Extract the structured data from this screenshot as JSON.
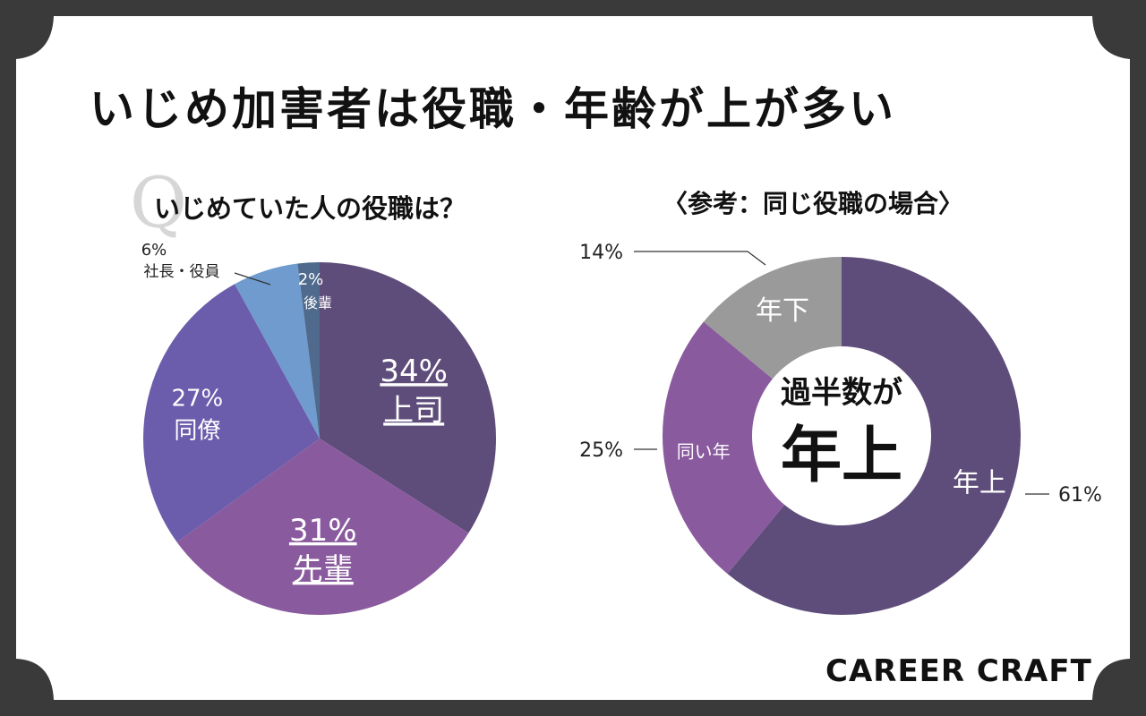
{
  "title": "いじめ加害者は役職・年齢が上が多い",
  "q_mark": "Q",
  "brand": "CAREER CRAFT",
  "chart_data": [
    {
      "type": "pie",
      "title": "いじめていた人の役職は？",
      "slices": [
        {
          "label": "上司",
          "value": 34,
          "value_text": "34%",
          "color": "#5e4d7a"
        },
        {
          "label": "先輩",
          "value": 31,
          "value_text": "31%",
          "color": "#8a5a9e"
        },
        {
          "label": "同僚",
          "value": 27,
          "value_text": "27%",
          "color": "#6b5dab"
        },
        {
          "label": "社長・役員",
          "value": 6,
          "value_text": "6%",
          "color": "#6f9bcf"
        },
        {
          "label": "後輩",
          "value": 2,
          "value_text": "2%",
          "color": "#4f6a8c"
        }
      ]
    },
    {
      "type": "pie",
      "subtype": "donut",
      "title": "〈参考：同じ役職の場合〉",
      "center_text": [
        "過半数が",
        "年上"
      ],
      "slices": [
        {
          "label": "年上",
          "value": 61,
          "value_text": "61%",
          "color": "#5e4d7a"
        },
        {
          "label": "同い年",
          "value": 25,
          "value_text": "25%",
          "color": "#8a5a9e"
        },
        {
          "label": "年下",
          "value": 14,
          "value_text": "14%",
          "color": "#9a9a9a"
        }
      ]
    }
  ]
}
